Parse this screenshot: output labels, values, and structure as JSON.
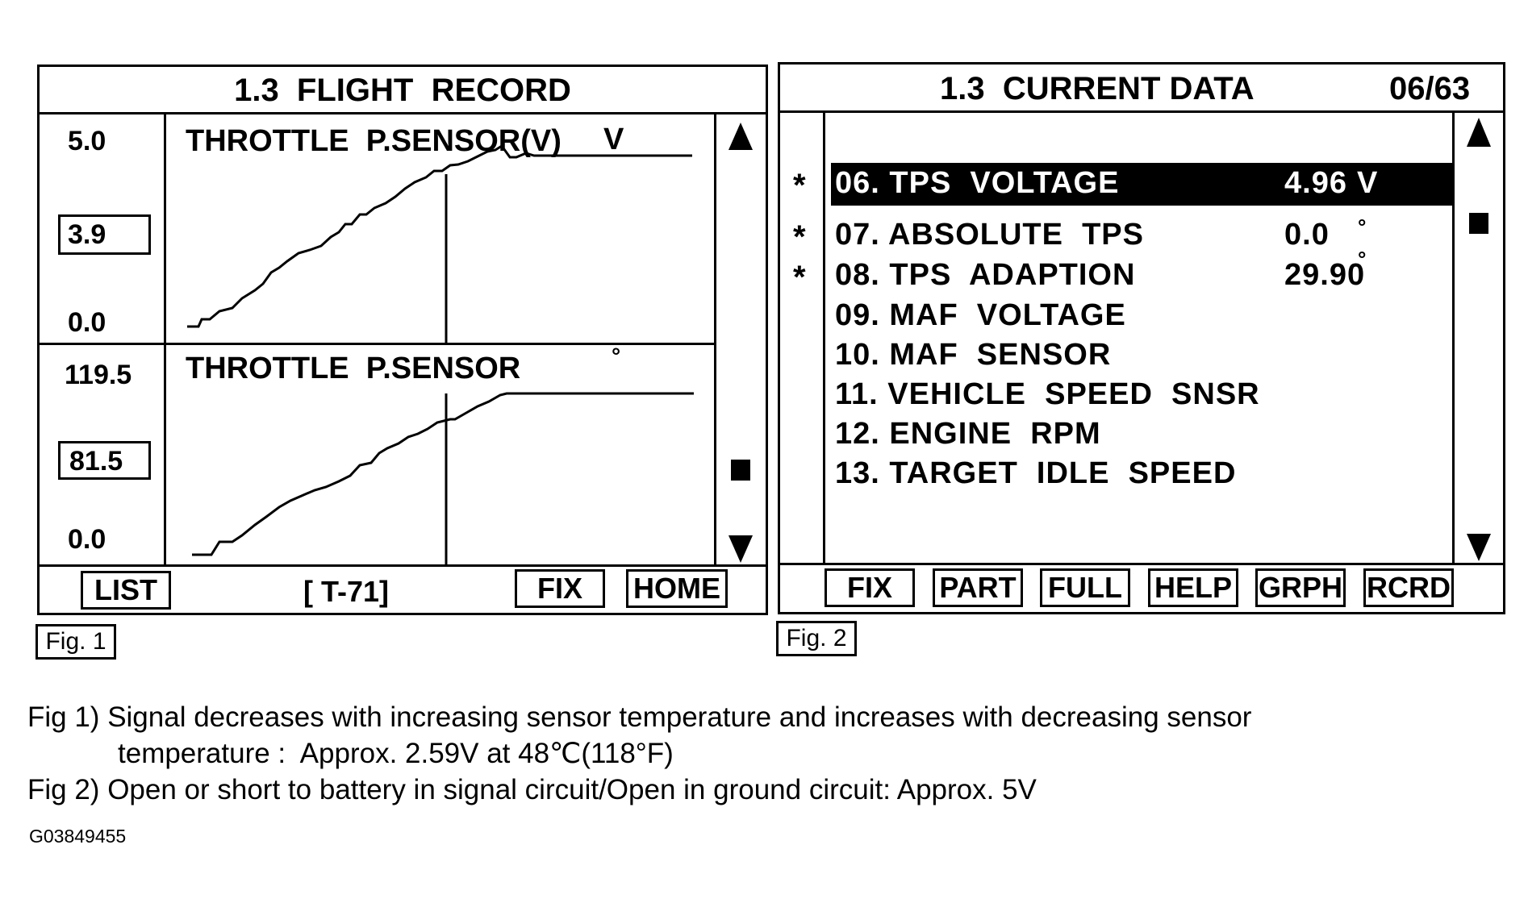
{
  "fig1": {
    "title": "1.3  FLIGHT  RECORD",
    "top_graph": {
      "max": "5.0",
      "current": "3.9",
      "min": "0.0",
      "label": "THROTTLE  P.SENSOR(V)",
      "unit": "V"
    },
    "bottom_graph": {
      "max": "119.5",
      "current": "81.5",
      "min": "0.0",
      "label": "THROTTLE  P.SENSOR",
      "unit": "°"
    },
    "buttons": {
      "list": "LIST",
      "frame": "[ T-71]",
      "fix": "FIX",
      "home": "HOME"
    },
    "label": "Fig. 1"
  },
  "fig2": {
    "title": "1.3  CURRENT DATA",
    "page": "06/63",
    "items": [
      {
        "name": "06. TPS  VOLTAGE",
        "value": "4.96",
        "unit": "V",
        "marked": "*",
        "selected": true
      },
      {
        "name": "07. ABSOLUTE  TPS",
        "value": "0.0",
        "unit": "°",
        "marked": "*",
        "selected": false
      },
      {
        "name": "08. TPS  ADAPTION",
        "value": "29.90",
        "unit": "°",
        "marked": "*",
        "selected": false
      },
      {
        "name": "09. MAF  VOLTAGE",
        "value": "",
        "unit": "",
        "marked": "",
        "selected": false
      },
      {
        "name": "10. MAF  SENSOR",
        "value": "",
        "unit": "",
        "marked": "",
        "selected": false
      },
      {
        "name": "11. VEHICLE  SPEED  SNSR",
        "value": "",
        "unit": "",
        "marked": "",
        "selected": false
      },
      {
        "name": "12. ENGINE  RPM",
        "value": "",
        "unit": "",
        "marked": "",
        "selected": false
      },
      {
        "name": "13. TARGET  IDLE  SPEED",
        "value": "",
        "unit": "",
        "marked": "",
        "selected": false
      }
    ],
    "buttons": [
      "FIX",
      "PART",
      "FULL",
      "HELP",
      "GRPH",
      "RCRD"
    ],
    "label": "Fig. 2"
  },
  "notes": {
    "line1": "Fig 1) Signal decreases with increasing sensor temperature and increases with decreasing sensor",
    "line2": "temperature :  Approx. 2.59V at 48℃(118°F)",
    "line3": "Fig 2) Open or short to battery in signal circuit/Open in ground circuit: Approx. 5V",
    "code": "G03849455"
  }
}
